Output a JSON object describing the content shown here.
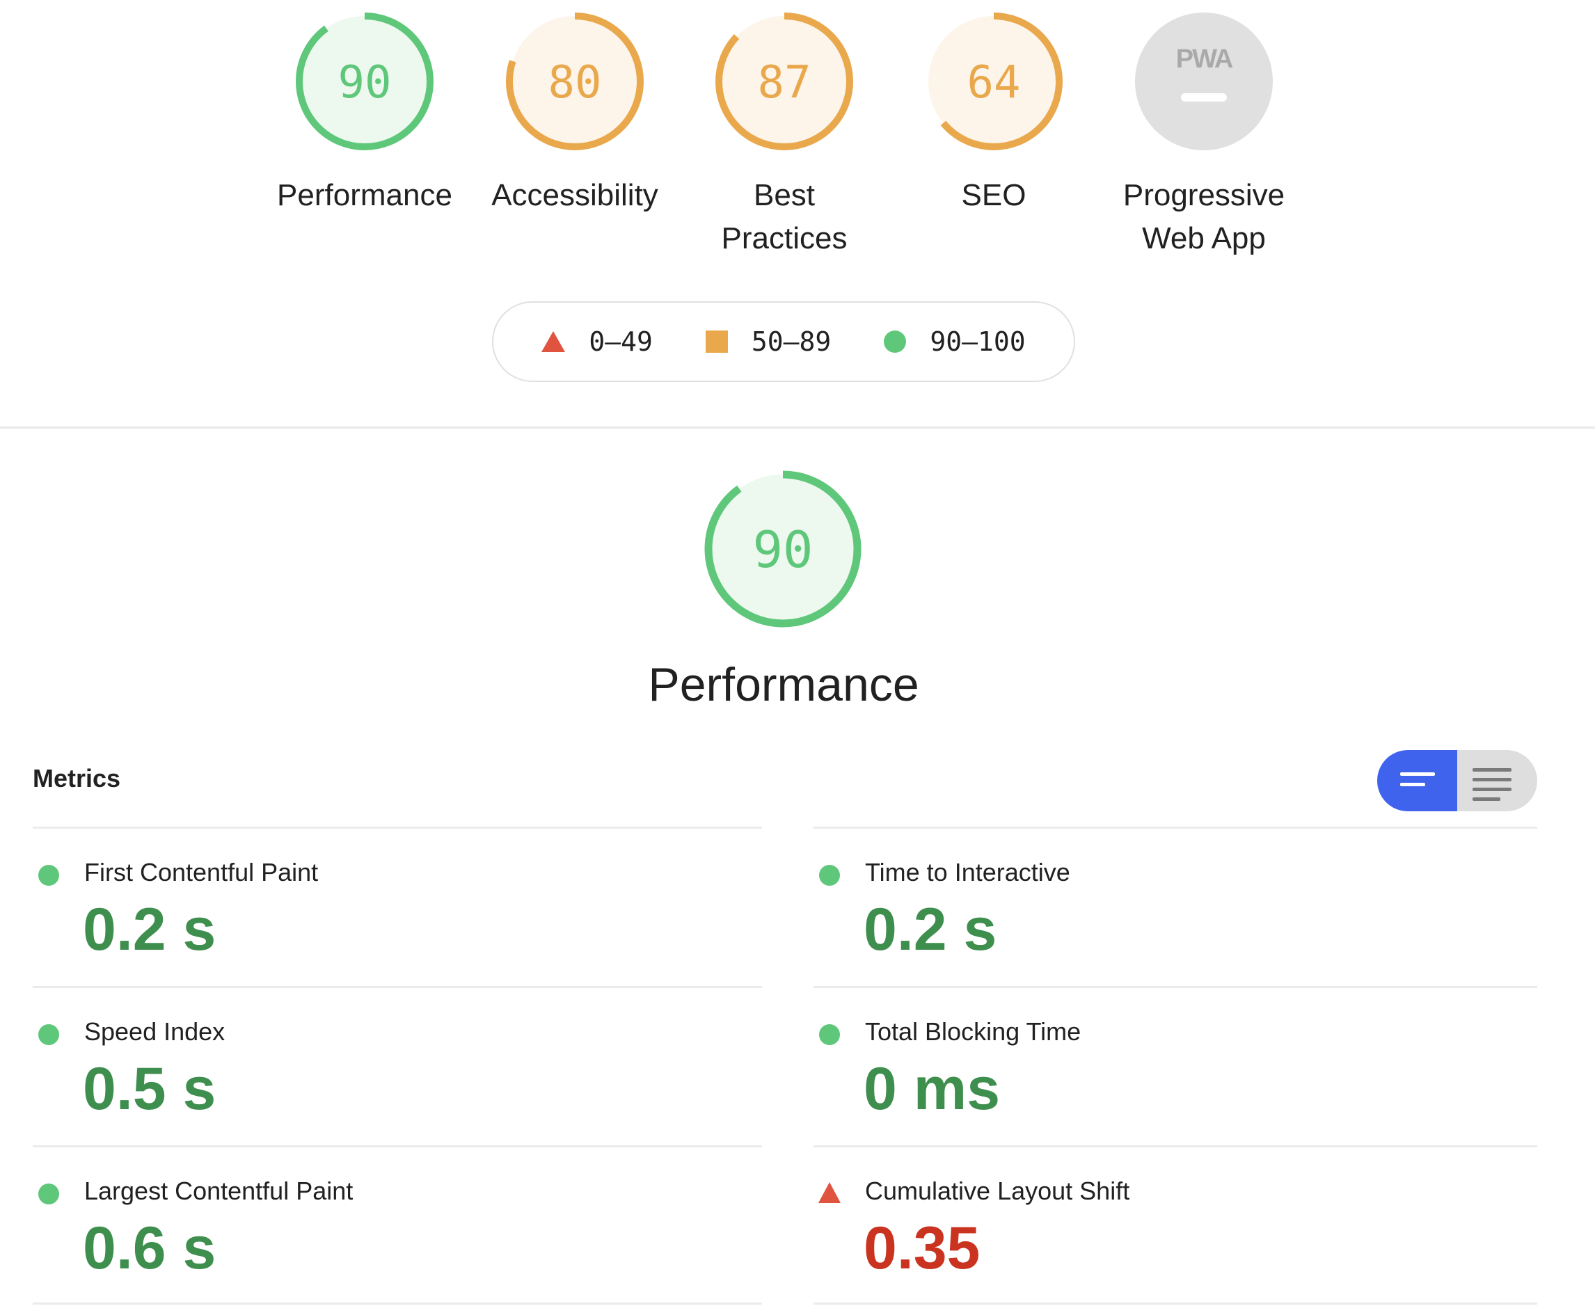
{
  "colors": {
    "pass": "#5ec77a",
    "pass_text": "#3e8e4e",
    "average": "#e9a84b",
    "fail": "#e0533f",
    "fail_text": "#c9331f",
    "toggle_active": "#3f63ed"
  },
  "categories": [
    {
      "label": "Performance",
      "score": 90,
      "rating": "pass"
    },
    {
      "label": "Accessibility",
      "score": 80,
      "rating": "average"
    },
    {
      "label": "Best\nPractices",
      "score": 87,
      "rating": "average"
    },
    {
      "label": "SEO",
      "score": 64,
      "rating": "average"
    },
    {
      "label": "Progressive\nWeb App",
      "badge": "PWA",
      "rating": "na"
    }
  ],
  "legend": {
    "fail": "0–49",
    "average": "50–89",
    "pass": "90–100"
  },
  "main": {
    "score": 90,
    "title": "Performance"
  },
  "metrics": {
    "header": "Metrics",
    "items": [
      {
        "label": "First Contentful Paint",
        "value": "0.2 s",
        "rating": "pass"
      },
      {
        "label": "Time to Interactive",
        "value": "0.2 s",
        "rating": "pass"
      },
      {
        "label": "Speed Index",
        "value": "0.5 s",
        "rating": "pass"
      },
      {
        "label": "Total Blocking Time",
        "value": "0 ms",
        "rating": "pass"
      },
      {
        "label": "Largest Contentful Paint",
        "value": "0.6 s",
        "rating": "pass"
      },
      {
        "label": "Cumulative Layout Shift",
        "value": "0.35",
        "rating": "fail"
      }
    ]
  },
  "view_toggle": {
    "active": "compact-view-icon",
    "inactive": "expanded-view-icon"
  }
}
